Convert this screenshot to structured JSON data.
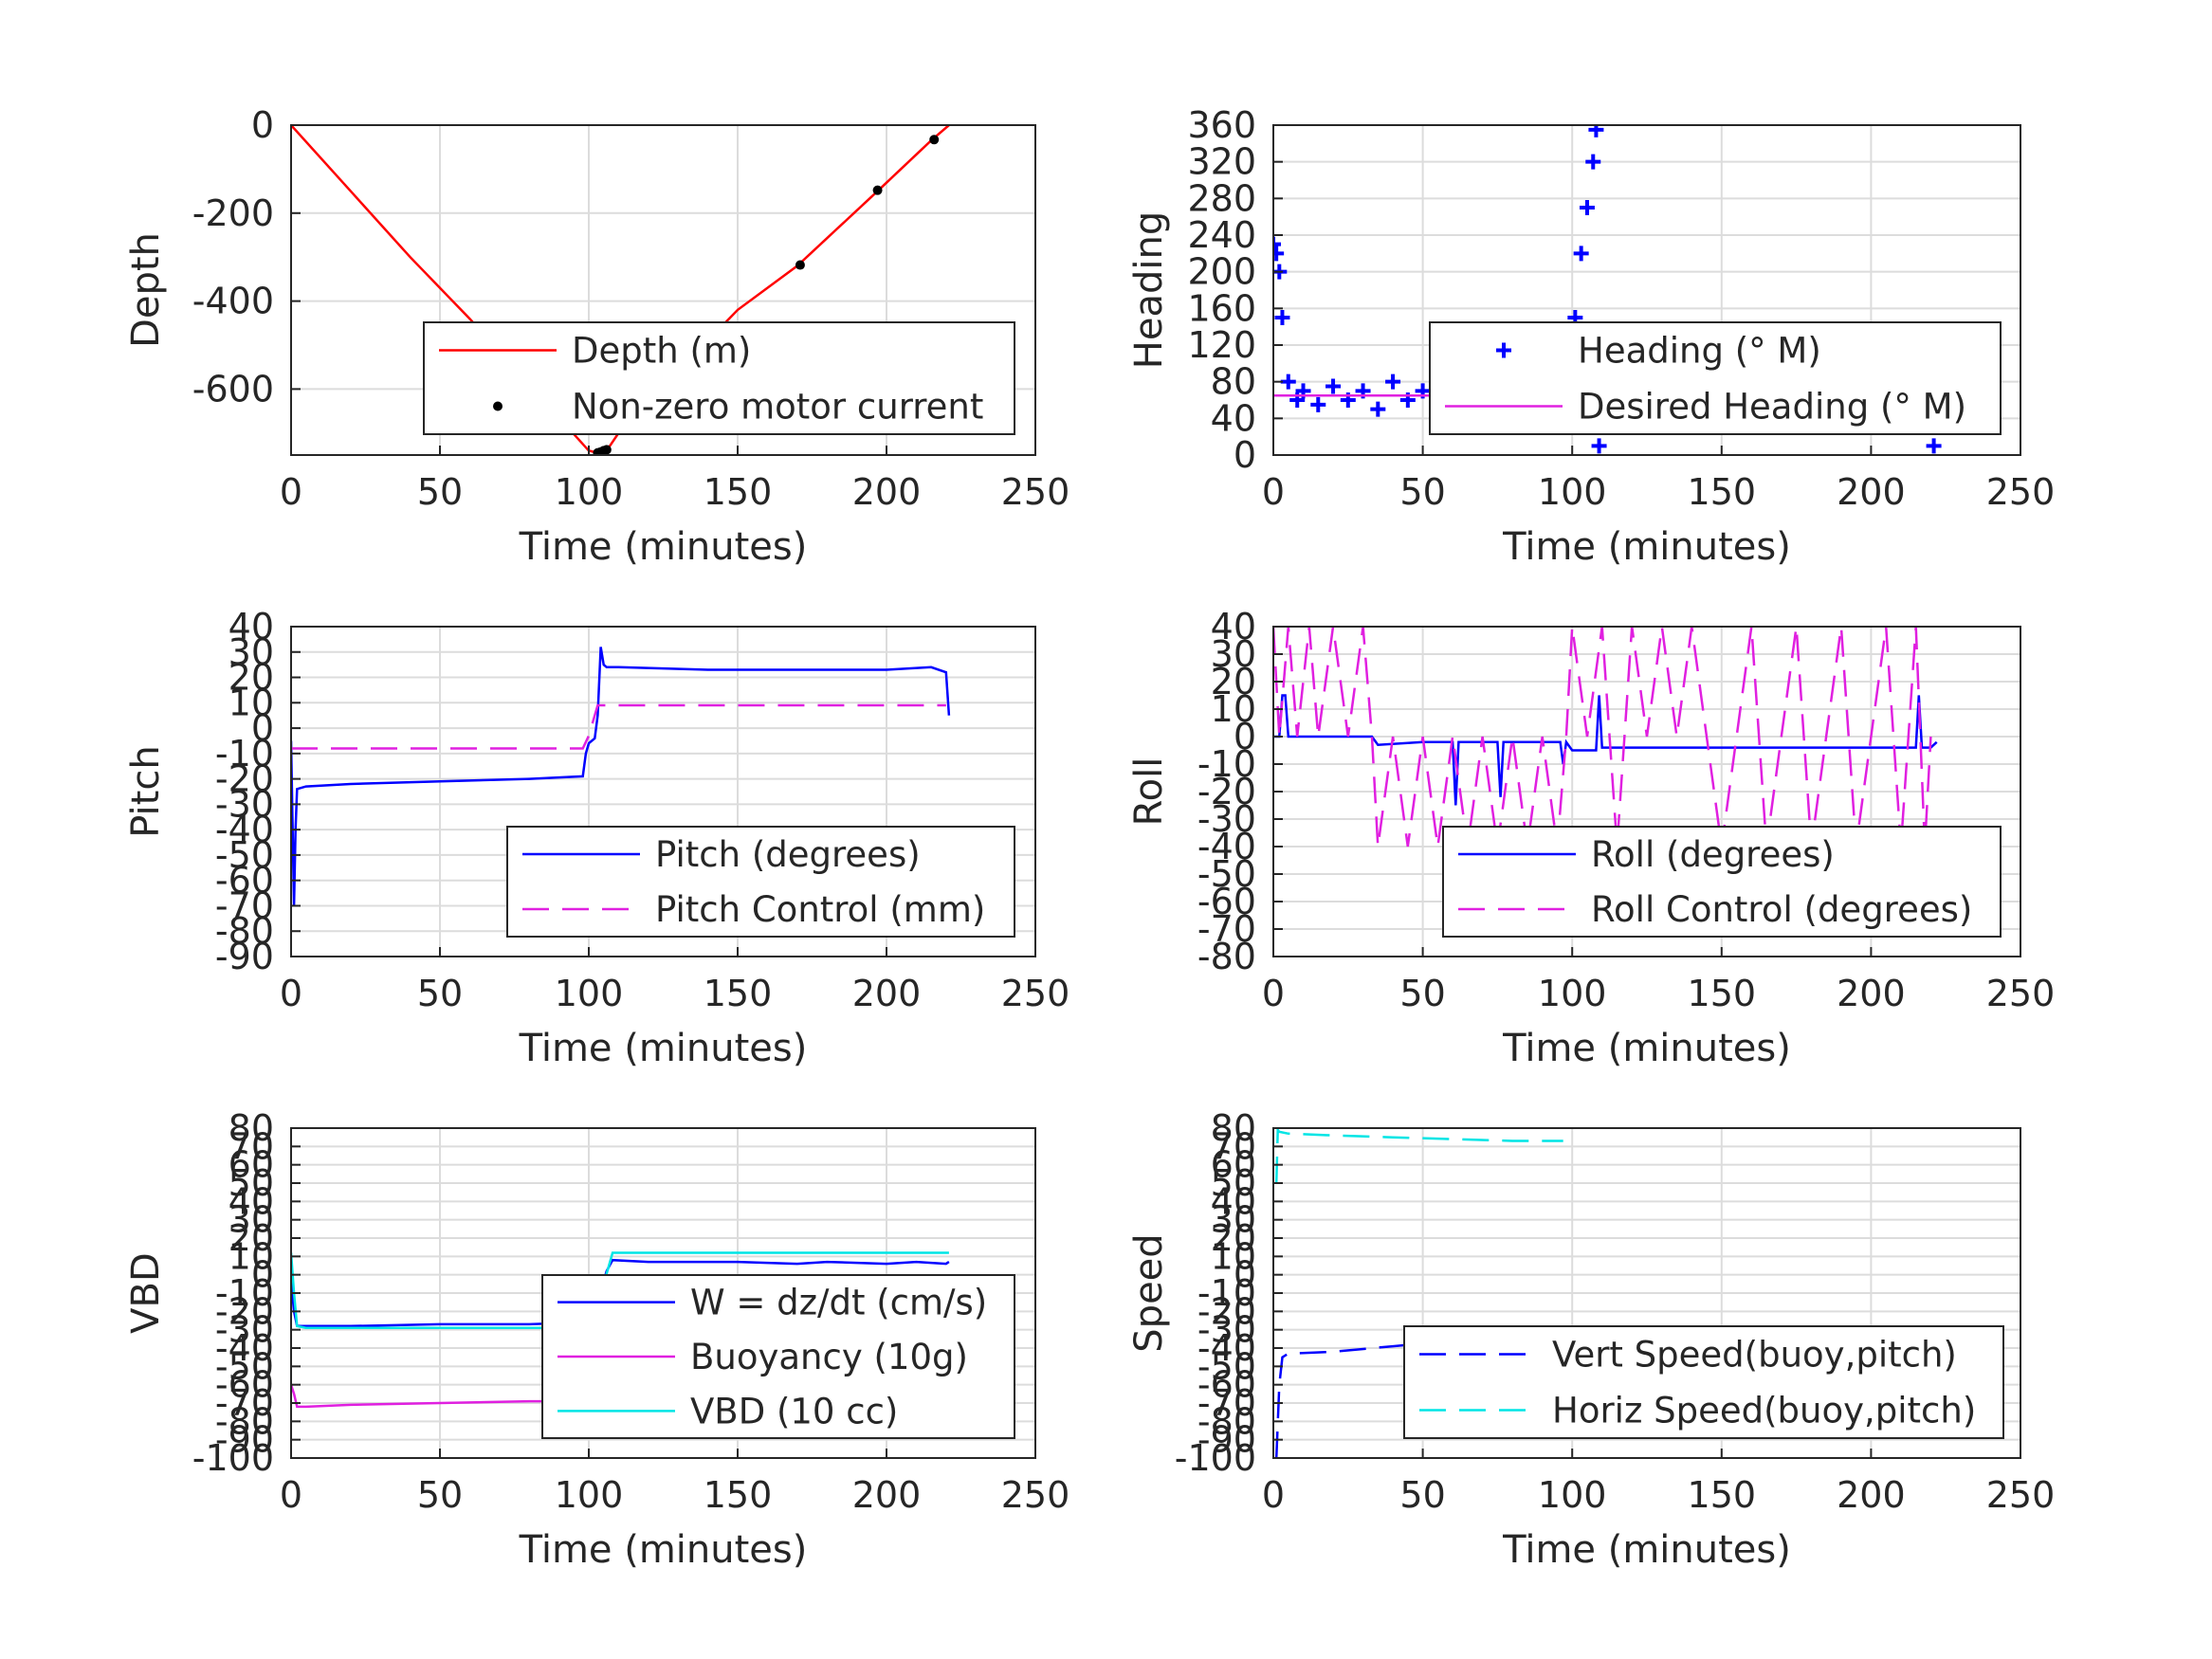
{
  "colors": {
    "blue": "#0000ff",
    "red": "#ff0000",
    "magenta": "#e020e0",
    "cyan": "#00e5e5",
    "axis": "#262626",
    "grid": "#dcdcdc"
  },
  "chart_data": [
    {
      "type": "line",
      "xlabel": "Time (minutes)",
      "ylabel": "Depth",
      "xlim": [
        0,
        250
      ],
      "ylim": [
        -750,
        0
      ],
      "xticks": [
        0,
        50,
        100,
        150,
        200,
        250
      ],
      "yticks": [
        0,
        -200,
        -400,
        -600
      ],
      "grid": true,
      "legend_position": "bottom-right",
      "series": [
        {
          "name": "Depth (m)",
          "style": "solid",
          "color": "#ff0000",
          "x": [
            0,
            20,
            40,
            60,
            80,
            100,
            103,
            106,
            110,
            130,
            150,
            170,
            197,
            215,
            221
          ],
          "y": [
            0,
            -150,
            -300,
            -440,
            -590,
            -740,
            -745,
            -740,
            -700,
            -560,
            -420,
            -320,
            -150,
            -35,
            0
          ]
        },
        {
          "name": "Non-zero motor current",
          "style": "dots",
          "color": "#000000",
          "x": [
            103,
            104,
            105,
            106,
            171,
            197,
            216
          ],
          "y": [
            -745,
            -743,
            -740,
            -738,
            -318,
            -148,
            -33
          ]
        }
      ]
    },
    {
      "type": "scatter",
      "xlabel": "Time (minutes)",
      "ylabel": "Heading",
      "xlim": [
        0,
        250
      ],
      "ylim": [
        0,
        360
      ],
      "xticks": [
        0,
        50,
        100,
        150,
        200,
        250
      ],
      "yticks": [
        0,
        40,
        80,
        120,
        160,
        200,
        240,
        280,
        320,
        360
      ],
      "grid": true,
      "legend_position": "bottom-right",
      "series": [
        {
          "name": "Heading (° M)",
          "style": "plus",
          "color": "#0000ff",
          "x": [
            0,
            1,
            2,
            3,
            5,
            8,
            10,
            15,
            20,
            25,
            30,
            35,
            40,
            45,
            50,
            55,
            60,
            65,
            70,
            75,
            80,
            85,
            90,
            95,
            99,
            101,
            103,
            105,
            107,
            108,
            109,
            110,
            115,
            120,
            125,
            130,
            135,
            140,
            145,
            150,
            155,
            160,
            165,
            170,
            175,
            180,
            185,
            190,
            195,
            200,
            205,
            210,
            215,
            218,
            220,
            221
          ],
          "y": [
            230,
            220,
            200,
            150,
            80,
            60,
            70,
            55,
            75,
            60,
            70,
            50,
            80,
            60,
            70,
            45,
            75,
            55,
            65,
            40,
            70,
            60,
            75,
            55,
            80,
            150,
            220,
            270,
            320,
            355,
            10,
            60,
            75,
            50,
            70,
            45,
            80,
            60,
            65,
            40,
            75,
            55,
            70,
            45,
            30,
            75,
            55,
            70,
            60,
            80,
            50,
            70,
            60,
            65,
            30,
            10
          ]
        },
        {
          "name": "Desired Heading (° M)",
          "style": "solid",
          "color": "#e020e0",
          "x": [
            0,
            221
          ],
          "y": [
            65,
            65
          ]
        }
      ]
    },
    {
      "type": "line",
      "xlabel": "Time (minutes)",
      "ylabel": "Pitch",
      "xlim": [
        0,
        250
      ],
      "ylim": [
        -90,
        40
      ],
      "xticks": [
        0,
        50,
        100,
        150,
        200,
        250
      ],
      "yticks": [
        40,
        30,
        20,
        10,
        0,
        -10,
        -20,
        -30,
        -40,
        -50,
        -60,
        -70,
        -80,
        -90
      ],
      "grid": true,
      "legend_position": "bottom-right",
      "series": [
        {
          "name": "Pitch (degrees)",
          "style": "solid",
          "color": "#0000ff",
          "x": [
            0,
            1,
            1.5,
            2,
            5,
            20,
            50,
            80,
            98,
            99,
            100,
            102,
            103,
            104,
            105,
            106,
            110,
            140,
            170,
            200,
            215,
            220,
            221
          ],
          "y": [
            -5,
            -70,
            -40,
            -24,
            -23,
            -22,
            -21,
            -20,
            -19,
            -10,
            -6,
            -4,
            5,
            32,
            25,
            24,
            24,
            23,
            23,
            23,
            24,
            22,
            5
          ]
        },
        {
          "name": "Pitch Control (mm)",
          "style": "dashed",
          "color": "#e020e0",
          "x": [
            0,
            98,
            100,
            103,
            105,
            220
          ],
          "y": [
            -8,
            -8,
            -3,
            9,
            9,
            9
          ]
        }
      ]
    },
    {
      "type": "line",
      "xlabel": "Time (minutes)",
      "ylabel": "Roll",
      "xlim": [
        0,
        250
      ],
      "ylim": [
        -80,
        40
      ],
      "xticks": [
        0,
        50,
        100,
        150,
        200,
        250
      ],
      "yticks": [
        40,
        30,
        20,
        10,
        0,
        -10,
        -20,
        -30,
        -40,
        -50,
        -60,
        -70,
        -80
      ],
      "grid": true,
      "legend_position": "bottom-right",
      "series": [
        {
          "name": "Roll (degrees)",
          "style": "solid",
          "color": "#0000ff",
          "x": [
            0,
            2,
            3,
            4,
            5,
            33,
            35,
            50,
            60,
            61,
            62,
            70,
            75,
            76,
            77,
            90,
            96,
            97,
            98,
            100,
            108,
            109,
            110,
            130,
            150,
            160,
            170,
            180,
            190,
            200,
            210,
            215,
            216,
            217,
            220,
            222
          ],
          "y": [
            0,
            0,
            15,
            15,
            0,
            0,
            -3,
            -2,
            -2,
            -25,
            -2,
            -2,
            -2,
            -22,
            -2,
            -2,
            -2,
            -10,
            -2,
            -5,
            -5,
            15,
            -4,
            -4,
            -4,
            -4,
            -4,
            -4,
            -4,
            -4,
            -4,
            -4,
            15,
            -4,
            -4,
            -2
          ]
        },
        {
          "name": "Roll Control (degrees)",
          "style": "dashed",
          "color": "#e020e0",
          "x": [
            0,
            2,
            5,
            8,
            12,
            15,
            20,
            25,
            30,
            33,
            35,
            40,
            45,
            50,
            55,
            60,
            65,
            70,
            75,
            80,
            85,
            90,
            95,
            98,
            100,
            105,
            110,
            115,
            120,
            125,
            130,
            135,
            140,
            145,
            150,
            155,
            160,
            165,
            170,
            175,
            180,
            185,
            190,
            195,
            200,
            205,
            210,
            215,
            218,
            220
          ],
          "y": [
            40,
            0,
            40,
            0,
            40,
            0,
            40,
            0,
            40,
            0,
            -40,
            0,
            -40,
            0,
            -40,
            0,
            -40,
            0,
            -40,
            0,
            -40,
            0,
            -40,
            0,
            40,
            0,
            40,
            -40,
            40,
            0,
            40,
            0,
            40,
            0,
            -40,
            0,
            40,
            -40,
            0,
            40,
            -40,
            0,
            40,
            -40,
            0,
            40,
            -40,
            40,
            -40,
            0
          ]
        }
      ]
    },
    {
      "type": "line",
      "xlabel": "Time (minutes)",
      "ylabel": "VBD",
      "xlim": [
        0,
        250
      ],
      "ylim": [
        -100,
        80
      ],
      "xticks": [
        0,
        50,
        100,
        150,
        200,
        250
      ],
      "yticks": [
        80,
        70,
        60,
        50,
        40,
        30,
        20,
        10,
        0,
        -10,
        -20,
        -30,
        -40,
        -50,
        -60,
        -70,
        -80,
        -90,
        -100
      ],
      "grid": true,
      "legend_position": "bottom-right",
      "series": [
        {
          "name": "W = dz/dt (cm/s)",
          "style": "solid",
          "color": "#0000ff",
          "x": [
            0,
            1,
            2,
            5,
            20,
            50,
            80,
            98,
            100,
            103,
            106,
            108,
            120,
            150,
            170,
            180,
            200,
            210,
            220,
            221
          ],
          "y": [
            -3,
            -20,
            -28,
            -28,
            -28,
            -27,
            -27,
            -26,
            -22,
            -15,
            2,
            8,
            7,
            7,
            6,
            7,
            6,
            7,
            6,
            7
          ]
        },
        {
          "name": "Buoyancy (10g)",
          "style": "solid",
          "color": "#e020e0",
          "x": [
            0,
            1,
            2,
            5,
            20,
            50,
            80,
            97
          ],
          "y": [
            -60,
            -65,
            -72,
            -72,
            -71,
            -70,
            -69,
            -69
          ]
        },
        {
          "name": "VBD (10 cc)",
          "style": "solid",
          "color": "#00e5e5",
          "x": [
            0,
            1,
            2,
            5,
            50,
            98,
            100,
            105,
            108,
            150,
            200,
            221
          ],
          "y": [
            12,
            -10,
            -28,
            -29,
            -29,
            -29,
            -24,
            -5,
            12,
            12,
            12,
            12
          ]
        }
      ]
    },
    {
      "type": "line",
      "xlabel": "Time (minutes)",
      "ylabel": "Speed",
      "xlim": [
        0,
        250
      ],
      "ylim": [
        -100,
        80
      ],
      "xticks": [
        0,
        50,
        100,
        150,
        200,
        250
      ],
      "yticks": [
        80,
        70,
        60,
        50,
        40,
        30,
        20,
        10,
        0,
        -10,
        -20,
        -30,
        -40,
        -50,
        -60,
        -70,
        -80,
        -90,
        -100
      ],
      "grid": true,
      "legend_position": "bottom-right",
      "series": [
        {
          "name": "Vert Speed(buoy,pitch)",
          "style": "dashed",
          "color": "#0000ff",
          "x": [
            1,
            2,
            3,
            5,
            20,
            40,
            60,
            80,
            97
          ],
          "y": [
            -100,
            -60,
            -45,
            -43,
            -42,
            -39,
            -36,
            -34,
            -34
          ]
        },
        {
          "name": "Horiz Speed(buoy,pitch)",
          "style": "dashed",
          "color": "#00e5e5",
          "x": [
            1,
            1.5,
            2,
            5,
            20,
            40,
            60,
            80,
            97
          ],
          "y": [
            50,
            79,
            78,
            77,
            76,
            75,
            74,
            73,
            73
          ]
        }
      ]
    }
  ]
}
